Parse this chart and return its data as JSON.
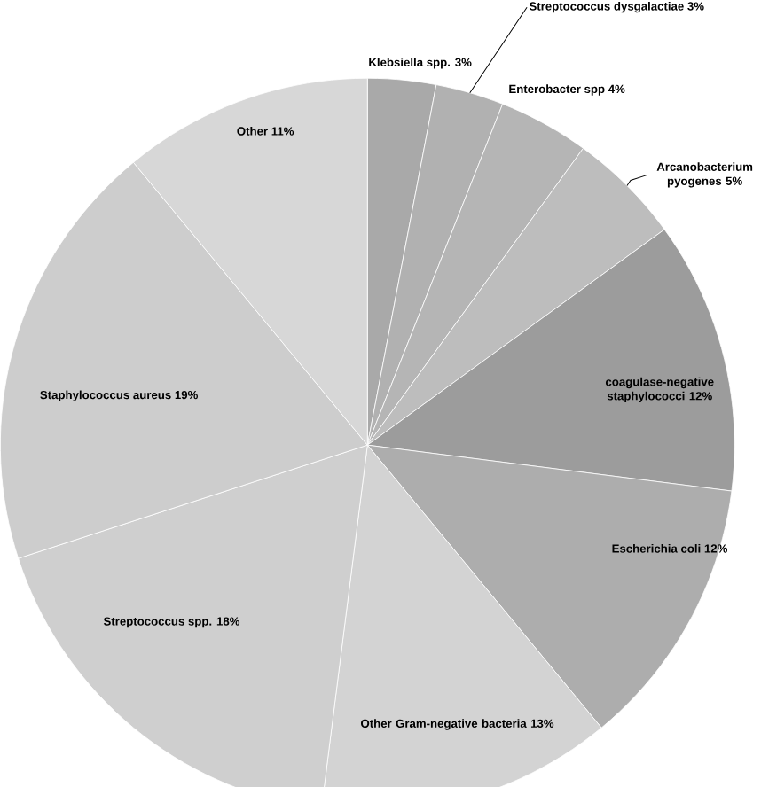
{
  "chart_data": {
    "type": "pie",
    "categories": [
      "Klebsiella spp.",
      "Streptococcus dysgalactiae",
      "Enterobacter spp",
      "Arcanobacterium pyogenes",
      "coagulase-negative staphylococci",
      "Escherichia coli",
      "Other Gram-negative bacteria",
      "Streptococcus spp.",
      "Staphylococcus aureus",
      "Other"
    ],
    "values": [
      3,
      3,
      4,
      5,
      12,
      12,
      13,
      18,
      19,
      11
    ],
    "value_labels": [
      "3%",
      "3%",
      "4%",
      "5%",
      "12%",
      "12%",
      "13%",
      "18%",
      "19%",
      "11%"
    ],
    "colors": [
      "#a9a9a9",
      "#b1b1b1",
      "#b5b5b5",
      "#bdbdbd",
      "#9c9c9c",
      "#adadad",
      "#d3d3d3",
      "#cfcfcf",
      "#cdcdcd",
      "#d7d7d7"
    ]
  }
}
